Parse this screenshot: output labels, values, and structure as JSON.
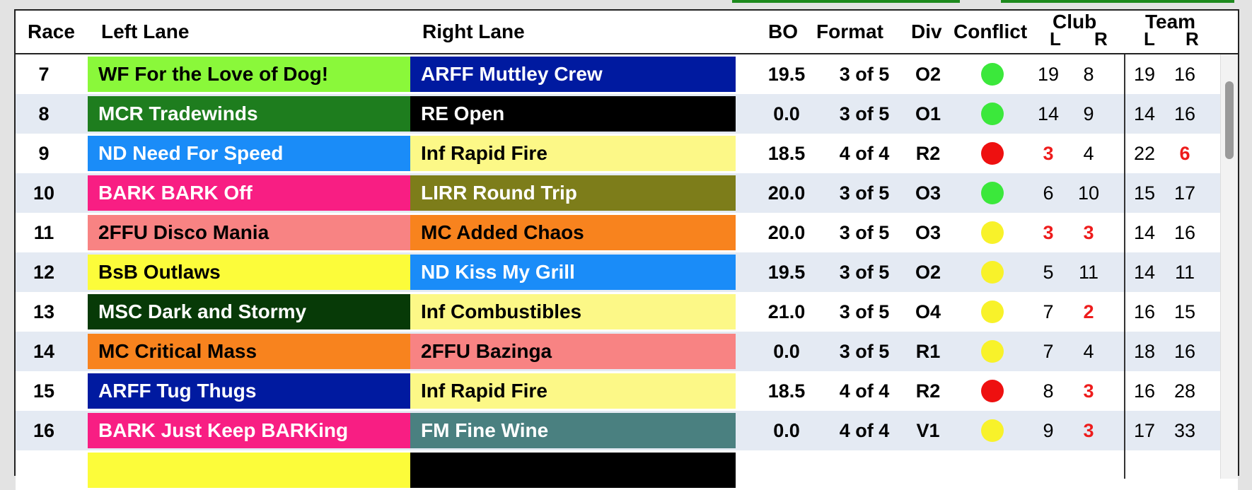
{
  "colors": {
    "conflict_green": "#3be83b",
    "conflict_red": "#ee1010",
    "conflict_yellow": "#f8f22a",
    "warn_text": "#ee1c1c",
    "row_alt": "#e4eaf3",
    "top_bar": "#1e8a1e"
  },
  "header": {
    "race": "Race",
    "left_lane": "Left Lane",
    "right_lane": "Right Lane",
    "bo": "BO",
    "format": "Format",
    "div": "Div",
    "conflict": "Conflict",
    "club": "Club",
    "club_l": "L",
    "club_r": "R",
    "team": "Team",
    "team_l": "L",
    "team_r": "R"
  },
  "rows": [
    {
      "race": "7",
      "left": "WF For the Love of Dog!",
      "left_bg": "#8af83a",
      "left_fg": "#000000",
      "right": "ARFF Muttley Crew",
      "right_bg": "#001aa0",
      "right_fg": "#ffffff",
      "bo": "19.5",
      "format": "3 of 5",
      "div": "O2",
      "conflict": "green",
      "club_l": "19",
      "club_r": "8",
      "team_l": "19",
      "team_r": "16",
      "club_l_warn": false,
      "club_r_warn": false,
      "team_l_warn": false,
      "team_r_warn": false
    },
    {
      "race": "8",
      "left": "MCR Tradewinds",
      "left_bg": "#1e7d1e",
      "left_fg": "#ffffff",
      "right": "RE Open",
      "right_bg": "#000000",
      "right_fg": "#ffffff",
      "bo": "0.0",
      "format": "3 of 5",
      "div": "O1",
      "conflict": "green",
      "club_l": "14",
      "club_r": "9",
      "team_l": "14",
      "team_r": "16",
      "club_l_warn": false,
      "club_r_warn": false,
      "team_l_warn": false,
      "team_r_warn": false
    },
    {
      "race": "9",
      "left": "ND Need For Speed",
      "left_bg": "#1a8cf8",
      "left_fg": "#ffffff",
      "right": "Inf Rapid Fire",
      "right_bg": "#fcf887",
      "right_fg": "#000000",
      "bo": "18.5",
      "format": "4 of 4",
      "div": "R2",
      "conflict": "red",
      "club_l": "3",
      "club_r": "4",
      "team_l": "22",
      "team_r": "6",
      "club_l_warn": true,
      "club_r_warn": false,
      "team_l_warn": false,
      "team_r_warn": true
    },
    {
      "race": "10",
      "left": "BARK BARK Off",
      "left_bg": "#f81e83",
      "left_fg": "#ffffff",
      "right": "LIRR Round Trip",
      "right_bg": "#7d7d1a",
      "right_fg": "#ffffff",
      "bo": "20.0",
      "format": "3 of 5",
      "div": "O3",
      "conflict": "green",
      "club_l": "6",
      "club_r": "10",
      "team_l": "15",
      "team_r": "17",
      "club_l_warn": false,
      "club_r_warn": false,
      "team_l_warn": false,
      "team_r_warn": false
    },
    {
      "race": "11",
      "left": "2FFU Disco Mania",
      "left_bg": "#f88383",
      "left_fg": "#000000",
      "right": "MC Added Chaos",
      "right_bg": "#f8831e",
      "right_fg": "#000000",
      "bo": "20.0",
      "format": "3 of 5",
      "div": "O3",
      "conflict": "yellow",
      "club_l": "3",
      "club_r": "3",
      "team_l": "14",
      "team_r": "16",
      "club_l_warn": true,
      "club_r_warn": true,
      "team_l_warn": false,
      "team_r_warn": false
    },
    {
      "race": "12",
      "left": "BsB Outlaws",
      "left_bg": "#fcfc3a",
      "left_fg": "#000000",
      "right": "ND Kiss My Grill",
      "right_bg": "#1a8cf8",
      "right_fg": "#ffffff",
      "bo": "19.5",
      "format": "3 of 5",
      "div": "O2",
      "conflict": "yellow",
      "club_l": "5",
      "club_r": "11",
      "team_l": "14",
      "team_r": "11",
      "club_l_warn": false,
      "club_r_warn": false,
      "team_l_warn": false,
      "team_r_warn": false
    },
    {
      "race": "13",
      "left": "MSC Dark and Stormy",
      "left_bg": "#073a07",
      "left_fg": "#ffffff",
      "right": "Inf Combustibles",
      "right_bg": "#fcf887",
      "right_fg": "#000000",
      "bo": "21.0",
      "format": "3 of 5",
      "div": "O4",
      "conflict": "yellow",
      "club_l": "7",
      "club_r": "2",
      "team_l": "16",
      "team_r": "15",
      "club_l_warn": false,
      "club_r_warn": true,
      "team_l_warn": false,
      "team_r_warn": false
    },
    {
      "race": "14",
      "left": "MC Critical Mass",
      "left_bg": "#f8831e",
      "left_fg": "#000000",
      "right": "2FFU Bazinga",
      "right_bg": "#f88383",
      "right_fg": "#000000",
      "bo": "0.0",
      "format": "3 of 5",
      "div": "R1",
      "conflict": "yellow",
      "club_l": "7",
      "club_r": "4",
      "team_l": "18",
      "team_r": "16",
      "club_l_warn": false,
      "club_r_warn": false,
      "team_l_warn": false,
      "team_r_warn": false
    },
    {
      "race": "15",
      "left": "ARFF Tug Thugs",
      "left_bg": "#001aa0",
      "left_fg": "#ffffff",
      "right": "Inf Rapid Fire",
      "right_bg": "#fcf887",
      "right_fg": "#000000",
      "bo": "18.5",
      "format": "4 of 4",
      "div": "R2",
      "conflict": "red",
      "club_l": "8",
      "club_r": "3",
      "team_l": "16",
      "team_r": "28",
      "club_l_warn": false,
      "club_r_warn": true,
      "team_l_warn": false,
      "team_r_warn": false
    },
    {
      "race": "16",
      "left": "BARK Just Keep BARKing",
      "left_bg": "#f81e83",
      "left_fg": "#ffffff",
      "right": "FM Fine Wine",
      "right_bg": "#4a8080",
      "right_fg": "#ffffff",
      "bo": "0.0",
      "format": "4 of 4",
      "div": "V1",
      "conflict": "yellow",
      "club_l": "9",
      "club_r": "3",
      "team_l": "17",
      "team_r": "33",
      "club_l_warn": false,
      "club_r_warn": true,
      "team_l_warn": false,
      "team_r_warn": false
    },
    {
      "race": "",
      "left": "",
      "left_bg": "#fcfc3a",
      "left_fg": "#000000",
      "right": "",
      "right_bg": "#000000",
      "right_fg": "#ffffff",
      "bo": "",
      "format": "",
      "div": "",
      "conflict": "none",
      "club_l": "",
      "club_r": "",
      "team_l": "",
      "team_r": "",
      "club_l_warn": false,
      "club_r_warn": false,
      "team_l_warn": false,
      "team_r_warn": false
    }
  ]
}
